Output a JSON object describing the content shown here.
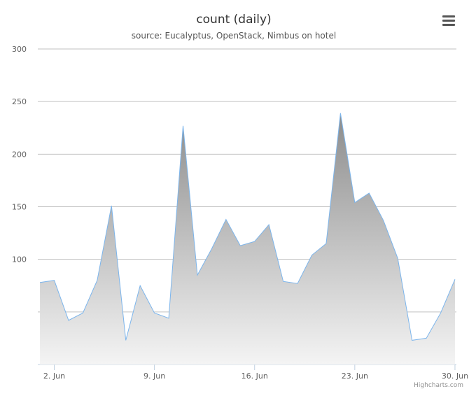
{
  "chart_data": {
    "type": "area",
    "title": "count (daily)",
    "subtitle": "source: Eucalyptus, OpenStack, Nimbus on hotel",
    "x": [
      1,
      2,
      3,
      4,
      5,
      6,
      7,
      8,
      9,
      10,
      11,
      12,
      13,
      14,
      15,
      16,
      17,
      18,
      19,
      20,
      21,
      22,
      23,
      24,
      25,
      26,
      27,
      28,
      29,
      30
    ],
    "series": [
      {
        "name": "count",
        "color": "#7cb5ec",
        "values": [
          78,
          80,
          42,
          49,
          80,
          151,
          23,
          75,
          49,
          44,
          227,
          85,
          110,
          138,
          113,
          117,
          133,
          79,
          77,
          104,
          115,
          239,
          154,
          163,
          137,
          101,
          23,
          25,
          49,
          81
        ]
      }
    ],
    "xlim": [
      0.85,
      30.1
    ],
    "xticks": [
      {
        "value": 2,
        "label": "2. Jun"
      },
      {
        "value": 9,
        "label": "9. Jun"
      },
      {
        "value": 16,
        "label": "16. Jun"
      },
      {
        "value": 23,
        "label": "23. Jun"
      },
      {
        "value": 30,
        "label": "30. Jun"
      }
    ],
    "ylim": [
      0,
      300
    ],
    "yticks": [
      100,
      150,
      200,
      250,
      300
    ],
    "unlabeled_yticks": [
      50
    ],
    "grid": true,
    "credits": "Highcharts.com"
  }
}
